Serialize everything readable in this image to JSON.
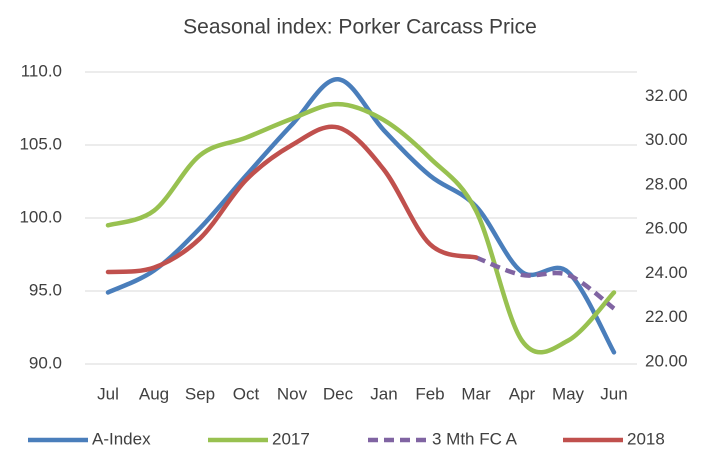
{
  "chart_data": {
    "type": "line",
    "title": "Seasonal index: Porker Carcass Price",
    "categories": [
      "Jul",
      "Aug",
      "Sep",
      "Oct",
      "Nov",
      "Dec",
      "Jan",
      "Feb",
      "Mar",
      "Apr",
      "May",
      "Jun"
    ],
    "series": [
      {
        "name": "A-Index",
        "color": "#4a7ebb",
        "values": [
          94.9,
          96.4,
          99.3,
          102.9,
          106.4,
          109.5,
          106.0,
          102.9,
          100.8,
          96.3,
          96.3,
          90.8
        ]
      },
      {
        "name": "2017",
        "color": "#98c150",
        "values": [
          99.5,
          100.5,
          104.3,
          105.5,
          106.8,
          107.8,
          106.7,
          104.1,
          100.5,
          91.6,
          91.6,
          94.9
        ]
      },
      {
        "name": "3 Mth FC A",
        "color": "#8064a2",
        "dashed": true,
        "values": [
          null,
          null,
          null,
          null,
          null,
          null,
          null,
          null,
          97.3,
          96.1,
          96.1,
          93.8
        ]
      },
      {
        "name": "2018",
        "color": "#c0504d",
        "values": [
          96.3,
          96.6,
          98.6,
          102.6,
          105.0,
          106.2,
          103.3,
          98.2,
          97.3,
          null,
          null,
          null
        ]
      }
    ],
    "ylim": [
      90,
      110
    ],
    "yticks": [
      {
        "value": 90,
        "label": "90.0"
      },
      {
        "value": 95,
        "label": "95.0"
      },
      {
        "value": 100,
        "label": "100.0"
      },
      {
        "value": 105,
        "label": "105.0"
      },
      {
        "value": 110,
        "label": "110.0"
      }
    ],
    "y2lim": [
      19.9,
      33.1
    ],
    "y2ticks": [
      {
        "value": 20,
        "label": "20.00"
      },
      {
        "value": 22,
        "label": "22.00"
      },
      {
        "value": 24,
        "label": "24.00"
      },
      {
        "value": 26,
        "label": "26.00"
      },
      {
        "value": 28,
        "label": "28.00"
      },
      {
        "value": 30,
        "label": "30.00"
      },
      {
        "value": 32,
        "label": "32.00"
      }
    ],
    "grid": true,
    "legend": "bottom"
  }
}
